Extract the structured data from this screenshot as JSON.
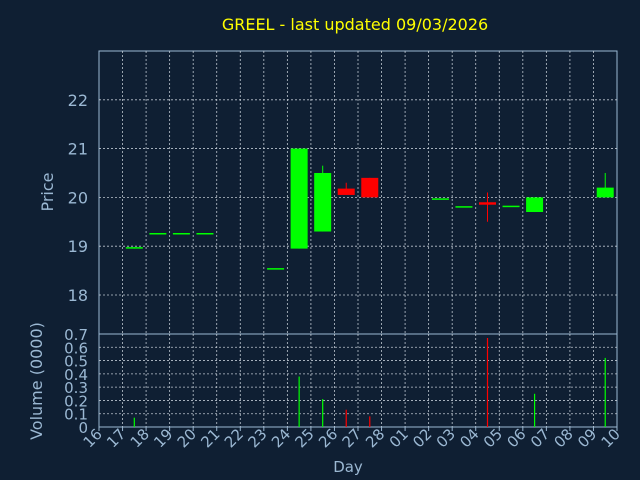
{
  "chart_data": {
    "type": "candlestick",
    "title": "GREEL - last updated 09/03/2026",
    "xlabel": "Day",
    "ylabel_price": "Price",
    "ylabel_volume": "Volume (0000)",
    "x_ticks": [
      "16",
      "17",
      "18",
      "19",
      "20",
      "21",
      "22",
      "23",
      "24",
      "25",
      "26",
      "27",
      "28",
      "01",
      "02",
      "03",
      "04",
      "05",
      "06",
      "07",
      "08",
      "09",
      "10"
    ],
    "price_ylim": [
      17.2,
      23.0
    ],
    "price_ticks": [
      18,
      19,
      20,
      21,
      22
    ],
    "volume_ylim": [
      0,
      0.7
    ],
    "volume_ticks": [
      "0",
      "0.1",
      "0.2",
      "0.3",
      "0.4",
      "0.5",
      "0.6",
      "0.7"
    ],
    "grid": true,
    "candles": [
      {
        "day": "17",
        "open": 18.95,
        "close": 18.98,
        "high": 18.98,
        "low": 18.95,
        "volume": 0.07
      },
      {
        "day": "18",
        "open": 19.27,
        "close": 19.27,
        "high": 19.27,
        "low": 19.27,
        "volume": 0.0
      },
      {
        "day": "19",
        "open": 19.27,
        "close": 19.27,
        "high": 19.27,
        "low": 19.27,
        "volume": 0.0
      },
      {
        "day": "20",
        "open": 19.27,
        "close": 19.27,
        "high": 19.27,
        "low": 19.27,
        "volume": 0.0
      },
      {
        "day": "23",
        "open": 18.55,
        "close": 18.55,
        "high": 18.55,
        "low": 18.55,
        "volume": 0.0
      },
      {
        "day": "24",
        "open": 18.95,
        "close": 21.0,
        "high": 21.0,
        "low": 18.95,
        "volume": 0.38
      },
      {
        "day": "25",
        "open": 19.3,
        "close": 20.5,
        "high": 20.65,
        "low": 19.3,
        "volume": 0.21
      },
      {
        "day": "26",
        "open": 20.18,
        "close": 20.05,
        "high": 20.3,
        "low": 20.05,
        "volume": 0.13
      },
      {
        "day": "27",
        "open": 20.4,
        "close": 20.0,
        "high": 20.4,
        "low": 20.0,
        "volume": 0.08
      },
      {
        "day": "02",
        "open": 19.98,
        "close": 19.98,
        "high": 19.98,
        "low": 19.98,
        "volume": 0.0
      },
      {
        "day": "03",
        "open": 19.82,
        "close": 19.82,
        "high": 19.82,
        "low": 19.82,
        "volume": 0.0
      },
      {
        "day": "04",
        "open": 19.9,
        "close": 19.85,
        "high": 20.1,
        "low": 19.5,
        "volume": 0.67
      },
      {
        "day": "05",
        "open": 19.83,
        "close": 19.83,
        "high": 19.83,
        "low": 19.83,
        "volume": 0.0
      },
      {
        "day": "06",
        "open": 19.7,
        "close": 20.0,
        "high": 20.0,
        "low": 19.7,
        "volume": 0.25
      },
      {
        "day": "09",
        "open": 20.0,
        "close": 20.2,
        "high": 20.5,
        "low": 20.0,
        "volume": 0.52
      }
    ],
    "colors": {
      "background": "#0f1f33",
      "axis": "#9bb8d3",
      "grid": "#cfd8e0",
      "title": "#ffff00",
      "up": "#00ff00",
      "down": "#ff0000"
    }
  }
}
